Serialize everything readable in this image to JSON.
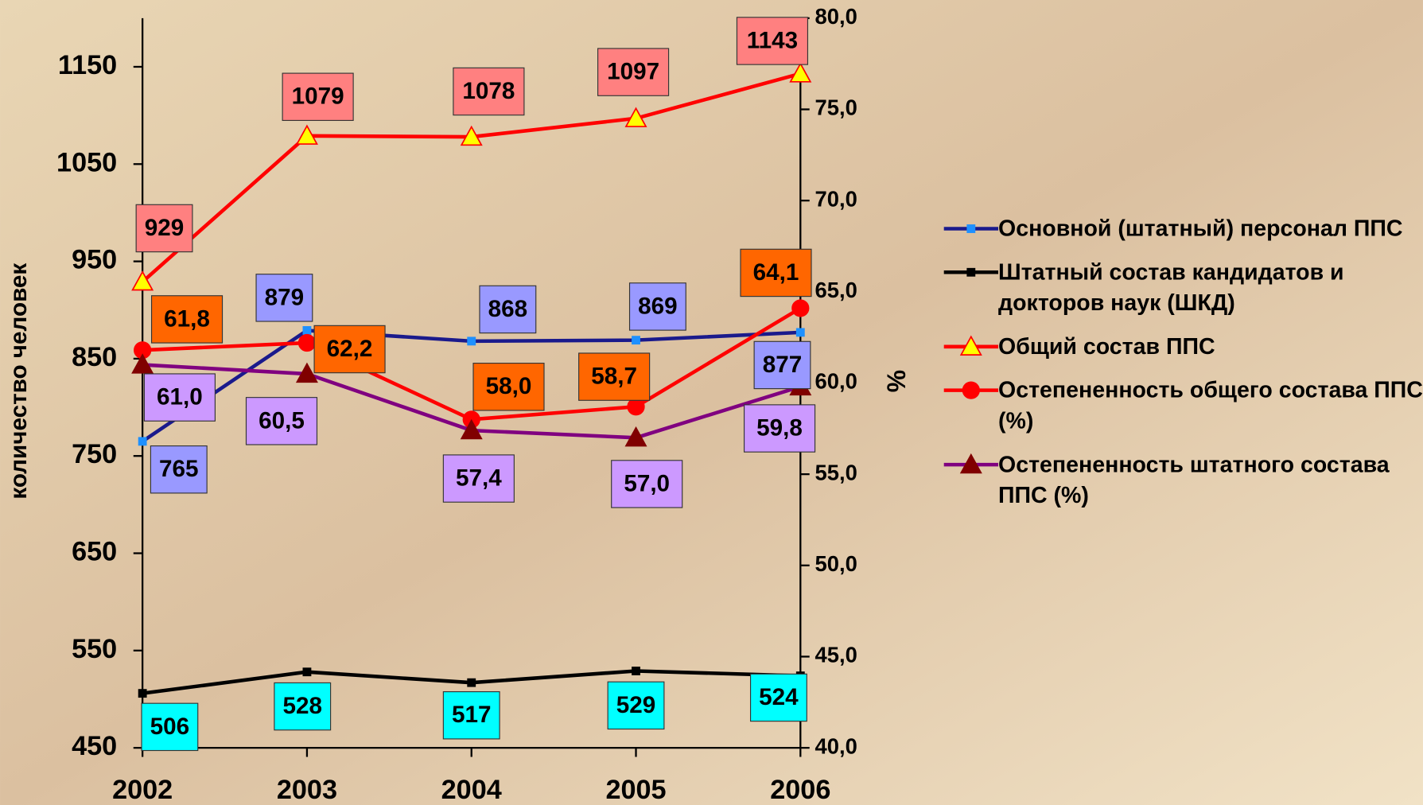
{
  "chart_data": {
    "type": "line",
    "y_label": "количество человек",
    "y2_label": "%",
    "categories": [
      "2002",
      "2003",
      "2004",
      "2005",
      "2006"
    ],
    "ylim": [
      450,
      1200
    ],
    "yticks": [
      450,
      550,
      650,
      750,
      850,
      950,
      1050,
      1150
    ],
    "y2lim": [
      40,
      80
    ],
    "y2ticks": [
      {
        "value": 40,
        "label": "40,0"
      },
      {
        "value": 45,
        "label": "45,0"
      },
      {
        "value": 50,
        "label": "50,0"
      },
      {
        "value": 55,
        "label": "55,0"
      },
      {
        "value": 60,
        "label": "60,0"
      },
      {
        "value": 65,
        "label": "65,0"
      },
      {
        "value": 70,
        "label": "70,0"
      },
      {
        "value": 75,
        "label": "75,0"
      },
      {
        "value": 80,
        "label": "80,0"
      }
    ],
    "grid": false,
    "legend": "right",
    "series": [
      {
        "name": "Основной (штатный) персонал ППС",
        "color": "#1a1a8c",
        "marker": "square",
        "marker_color": "#1e90ff",
        "label_color": "#9999ff",
        "values": [
          765,
          879,
          868,
          869,
          877
        ]
      },
      {
        "name": "Штатный состав кандидатов и докторов наук (ШКД)",
        "color": "#000000",
        "marker": "square",
        "marker_color": "#000000",
        "label_color": "#00ffff",
        "values": [
          506,
          528,
          517,
          529,
          524
        ]
      },
      {
        "name": "Общий состав ППС",
        "color": "#ff0000",
        "marker": "triangle",
        "marker_color": "#ffff00",
        "label_color": "#ff8080",
        "values": [
          929,
          1079,
          1078,
          1097,
          1143
        ]
      },
      {
        "name": "Остепененность общего состава ППС (%)",
        "color": "#ff0000",
        "marker": "circle",
        "marker_color": "#ff0000",
        "label_color": "#ff6600",
        "axis": "y2",
        "values": [
          61.8,
          62.2,
          58.0,
          58.7,
          64.1
        ],
        "value_labels": [
          "61,8",
          "62,2",
          "58,0",
          "58,7",
          "64,1"
        ]
      },
      {
        "name": "Остепененность штатного состава ППС (%)",
        "color": "#800080",
        "marker": "triangle",
        "marker_color": "#800000",
        "label_color": "#cc99ff",
        "axis": "y2",
        "values": [
          61.0,
          60.5,
          57.4,
          57.0,
          59.8
        ],
        "value_labels": [
          "61,0",
          "60,5",
          "57,4",
          "57,0",
          "59,8"
        ]
      }
    ]
  }
}
